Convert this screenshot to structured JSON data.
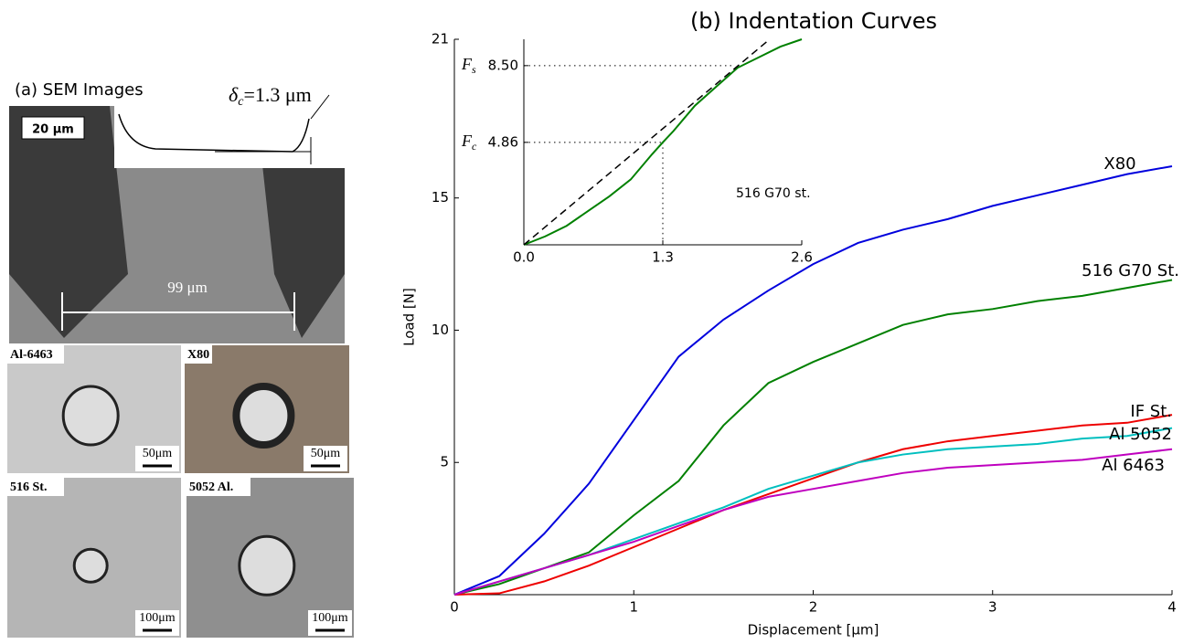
{
  "images": {
    "heading": "(a) SEM Images",
    "delta_symbol": "δ",
    "delta_sub": "c",
    "delta_value": "=1.3 μm",
    "sem_scale": "20 μm",
    "sem_width": "99 μm",
    "tiles": [
      {
        "label": "Al-6463",
        "scale": "50μm"
      },
      {
        "label": "X80",
        "scale": "50μm"
      },
      {
        "label": "516 St.",
        "scale": "100μm"
      },
      {
        "label": "5052 Al.",
        "scale": "100μm"
      }
    ]
  },
  "chart_data": [
    {
      "type": "line",
      "title": "(b) Indentation Curves",
      "x_label": "Displacement [μm]",
      "y_label": "Load [N]",
      "x": [
        0,
        0.25,
        0.5,
        0.75,
        1,
        1.25,
        1.5,
        1.75,
        2,
        2.25,
        2.5,
        2.75,
        3,
        3.25,
        3.5,
        3.75,
        4
      ],
      "xlim": [
        0,
        4
      ],
      "xticks": [
        0,
        1,
        2,
        3,
        4
      ],
      "ylim": [
        0,
        21
      ],
      "yticks": [
        5,
        10,
        15,
        21
      ],
      "series": [
        {
          "name": "X80",
          "color": "#0000dd",
          "values": [
            0,
            0.7,
            2.3,
            4.2,
            6.6,
            9.0,
            10.4,
            11.5,
            12.5,
            13.3,
            13.8,
            14.2,
            14.7,
            15.1,
            15.5,
            15.9,
            16.2
          ]
        },
        {
          "name": "516 G70 St.",
          "color": "#008000",
          "values": [
            0,
            0.4,
            1.0,
            1.6,
            3.0,
            4.3,
            6.4,
            8.0,
            8.8,
            9.5,
            10.2,
            10.6,
            10.8,
            11.1,
            11.3,
            11.6,
            11.9
          ]
        },
        {
          "name": "IF St.",
          "color": "#ee0000",
          "values": [
            0,
            0.05,
            0.5,
            1.1,
            1.8,
            2.5,
            3.2,
            3.8,
            4.4,
            5.0,
            5.5,
            5.8,
            6.0,
            6.2,
            6.4,
            6.5,
            6.8
          ]
        },
        {
          "name": "Al 5052",
          "color": "#00bfbf",
          "values": [
            0,
            0.5,
            1.0,
            1.5,
            2.1,
            2.7,
            3.3,
            4.0,
            4.5,
            5.0,
            5.3,
            5.5,
            5.6,
            5.7,
            5.9,
            6.0,
            6.3
          ]
        },
        {
          "name": "Al 6463",
          "color": "#bf00bf",
          "values": [
            0,
            0.5,
            1.0,
            1.5,
            2.0,
            2.6,
            3.2,
            3.7,
            4.0,
            4.3,
            4.6,
            4.8,
            4.9,
            5.0,
            5.1,
            5.3,
            5.5
          ]
        }
      ]
    },
    {
      "type": "line",
      "annotation": "516 G70 st.",
      "x": [
        0,
        0.2,
        0.4,
        0.6,
        0.8,
        1,
        1.2,
        1.3,
        1.4,
        1.6,
        1.8,
        2,
        2.2,
        2.4,
        2.6
      ],
      "xlim": [
        0,
        2.6
      ],
      "xticks": [
        {
          "value": 0,
          "label": "0.0"
        },
        1.3,
        2.6
      ],
      "ylim": [
        0,
        9.75
      ],
      "yticks": [
        4.86,
        {
          "value": 8.5,
          "label": "8.50"
        }
      ],
      "series": [
        {
          "color": "#008000",
          "values": [
            0,
            0.4,
            0.9,
            1.6,
            2.3,
            3.1,
            4.3,
            4.86,
            5.4,
            6.6,
            7.5,
            8.4,
            8.9,
            9.4,
            9.75
          ]
        },
        {
          "color": "#000000",
          "dash": true,
          "x": [
            0,
            2.3
          ],
          "values": [
            0,
            9.75
          ]
        }
      ],
      "points": [
        {
          "symbol": "F",
          "sub": "c",
          "x": 1.3,
          "y": 4.86
        },
        {
          "symbol": "F",
          "sub": "s",
          "x": 1.97,
          "y": 8.5
        }
      ]
    }
  ]
}
